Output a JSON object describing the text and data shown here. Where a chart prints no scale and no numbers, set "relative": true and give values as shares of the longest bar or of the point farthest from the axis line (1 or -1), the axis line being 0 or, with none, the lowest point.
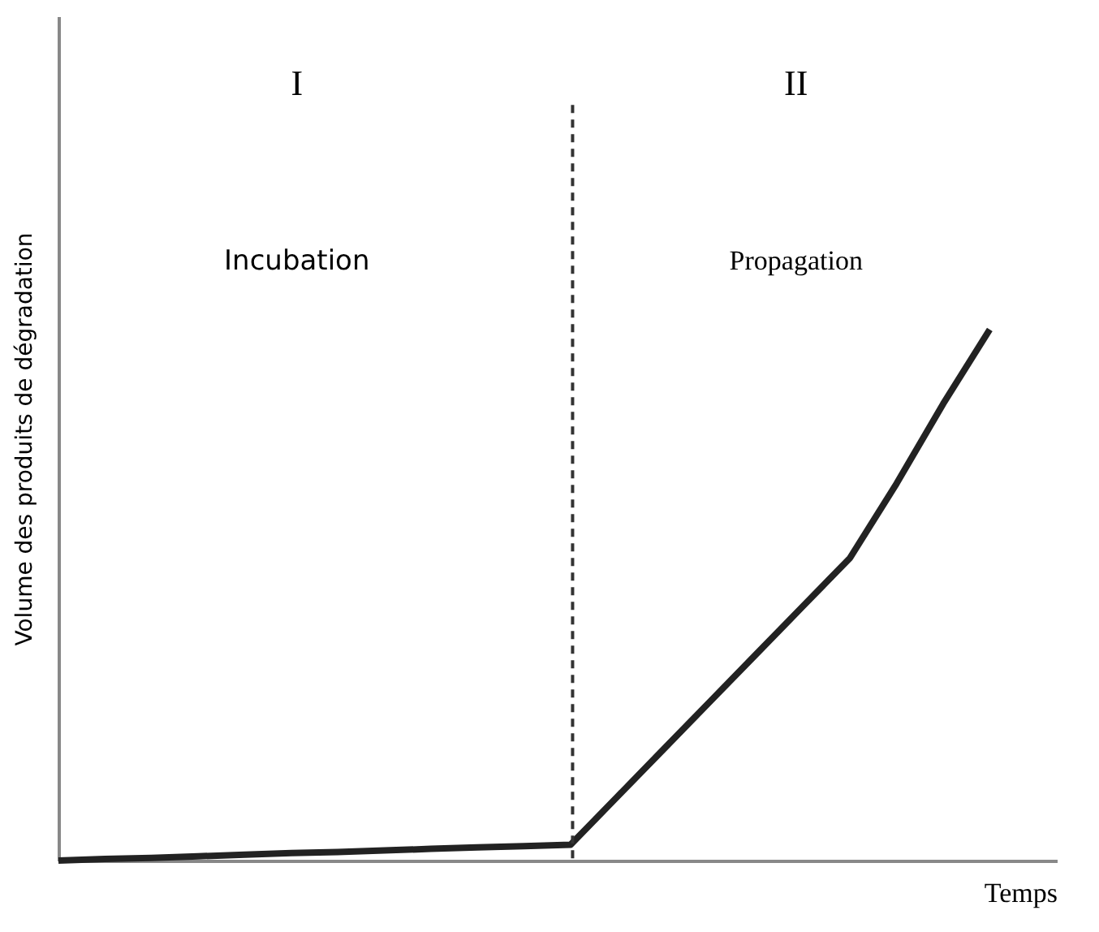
{
  "chart_data": {
    "type": "line",
    "relative": true,
    "xlabel": "Temps",
    "ylabel": "Volume des produits de dégradation",
    "categories": [
      null,
      null,
      null,
      null,
      null,
      null,
      null,
      null,
      null,
      null,
      null,
      null,
      null,
      null,
      null,
      null,
      null,
      null,
      null,
      null,
      null
    ],
    "series": [
      {
        "color": "#222222",
        "values": [
          0,
          0.003,
          0.005,
          0.008,
          0.011,
          0.014,
          0.016,
          0.019,
          0.022,
          0.025,
          0.027,
          0.03,
          0.12,
          0.21,
          0.3,
          0.39,
          0.48,
          0.57,
          0.71,
          0.86,
          1
        ]
      }
    ],
    "marker": "none",
    "line_style": "solid",
    "annotations": [
      "I",
      "Incubation",
      "II",
      "Propagation"
    ]
  }
}
